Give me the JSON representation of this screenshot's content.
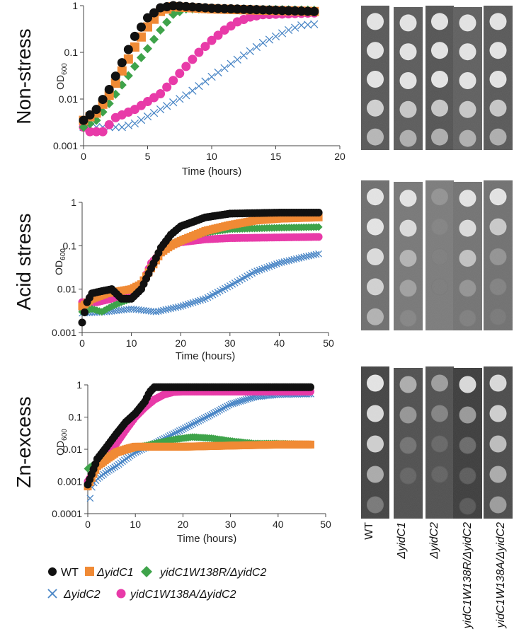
{
  "colors": {
    "WT": "#111111",
    "dyidC1": "#f08a35",
    "W138R": "#3ea34a",
    "dyidC2": "#4a86c6",
    "W138A": "#e83aa8"
  },
  "strains": [
    "WT",
    "ΔyidC1",
    "ΔyidC2",
    "yidC1W138R/ΔyidC2",
    "yidC1W138A/ΔyidC2"
  ],
  "legend": {
    "row1": [
      {
        "key": "WT",
        "label": "WT",
        "italic": false,
        "marker": "circle"
      },
      {
        "key": "dyidC1",
        "label": "ΔyidC1",
        "italic": true,
        "marker": "square"
      },
      {
        "key": "W138R",
        "label": "yidC1W138R/ΔyidC2",
        "italic": true,
        "marker": "diamond"
      }
    ],
    "row2": [
      {
        "key": "dyidC2",
        "label": "ΔyidC2",
        "italic": true,
        "marker": "cross"
      },
      {
        "key": "W138A",
        "label": "yidC1W138A/ΔyidC2",
        "italic": true,
        "marker": "circle"
      }
    ]
  },
  "chart_data": [
    {
      "type": "scatter",
      "title": "Non-stress",
      "xlabel": "Time (hours)",
      "ylabel": "OD600",
      "ylabel_main": "OD",
      "ylabel_sub": "600",
      "yscale": "log",
      "xlim": [
        0,
        20
      ],
      "ylim": [
        0.001,
        1
      ],
      "xticks": [
        0,
        5,
        10,
        15,
        20
      ],
      "yticks": [
        1,
        0.1,
        0.01,
        0.001
      ],
      "ytick_labels": [
        "1",
        "0.1",
        "0.01",
        "0.001"
      ],
      "series": [
        {
          "name": "WT",
          "key": "WT",
          "xmax": 18,
          "step": 0.5,
          "points": [
            [
              0,
              0.0035
            ],
            [
              1,
              0.006
            ],
            [
              2,
              0.016
            ],
            [
              3,
              0.06
            ],
            [
              4,
              0.22
            ],
            [
              5,
              0.55
            ],
            [
              6,
              0.9
            ],
            [
              7,
              1.0
            ],
            [
              10,
              0.88
            ],
            [
              18,
              0.75
            ]
          ]
        },
        {
          "name": "ΔyidC1",
          "key": "dyidC1",
          "xmax": 18,
          "step": 0.5,
          "points": [
            [
              0,
              0.0035
            ],
            [
              1,
              0.005
            ],
            [
              2,
              0.012
            ],
            [
              3,
              0.04
            ],
            [
              4,
              0.13
            ],
            [
              5,
              0.35
            ],
            [
              6,
              0.75
            ],
            [
              7,
              0.95
            ],
            [
              10,
              0.85
            ],
            [
              18,
              0.75
            ]
          ]
        },
        {
          "name": "yidC1W138R/ΔyidC2",
          "key": "W138R",
          "xmax": 18,
          "step": 0.5,
          "points": [
            [
              0,
              0.0025
            ],
            [
              1,
              0.0035
            ],
            [
              2,
              0.008
            ],
            [
              3,
              0.02
            ],
            [
              4,
              0.05
            ],
            [
              5,
              0.12
            ],
            [
              6,
              0.3
            ],
            [
              7,
              0.65
            ],
            [
              8,
              0.85
            ],
            [
              12,
              0.85
            ],
            [
              18,
              0.8
            ]
          ]
        },
        {
          "name": "ΔyidC2",
          "key": "dyidC2",
          "xmax": 18,
          "step": 0.5,
          "points": [
            [
              0,
              0.0025
            ],
            [
              3,
              0.0025
            ],
            [
              4,
              0.003
            ],
            [
              6,
              0.006
            ],
            [
              8,
              0.012
            ],
            [
              10,
              0.03
            ],
            [
              12,
              0.07
            ],
            [
              14,
              0.16
            ],
            [
              16,
              0.3
            ],
            [
              17,
              0.38
            ],
            [
              18,
              0.4
            ]
          ]
        },
        {
          "name": "yidC1W138A/ΔyidC2",
          "key": "W138A",
          "xmax": 18,
          "step": 0.5,
          "points": [
            [
              0,
              0.0025
            ],
            [
              0.5,
              0.002
            ],
            [
              1.5,
              0.002
            ],
            [
              2.5,
              0.004
            ],
            [
              4,
              0.006
            ],
            [
              6,
              0.013
            ],
            [
              7,
              0.025
            ],
            [
              8,
              0.05
            ],
            [
              9,
              0.1
            ],
            [
              10,
              0.18
            ],
            [
              11,
              0.3
            ],
            [
              12,
              0.45
            ],
            [
              13,
              0.57
            ],
            [
              14,
              0.64
            ],
            [
              18,
              0.7
            ]
          ]
        }
      ]
    },
    {
      "type": "scatter",
      "title": "Acid stress",
      "xlabel": "Time (hours)",
      "ylabel": "OD600",
      "ylabel_main": "OD",
      "ylabel_sub": "600",
      "yscale": "log",
      "xlim": [
        0,
        50
      ],
      "ylim": [
        0.001,
        1
      ],
      "xticks": [
        0,
        10,
        20,
        30,
        40,
        50
      ],
      "yticks": [
        1,
        0.1,
        0.01,
        0.001
      ],
      "ytick_labels": [
        "1",
        "0.1",
        "0.01",
        "0.001"
      ],
      "series": [
        {
          "name": "WT",
          "key": "WT",
          "xmax": 48,
          "step": 0.5,
          "points": [
            [
              0,
              0.0017
            ],
            [
              1,
              0.005
            ],
            [
              2,
              0.008
            ],
            [
              4,
              0.009
            ],
            [
              6,
              0.01
            ],
            [
              8,
              0.006
            ],
            [
              10,
              0.006
            ],
            [
              12,
              0.01
            ],
            [
              14,
              0.03
            ],
            [
              16,
              0.09
            ],
            [
              18,
              0.18
            ],
            [
              20,
              0.28
            ],
            [
              25,
              0.45
            ],
            [
              30,
              0.55
            ],
            [
              40,
              0.58
            ],
            [
              48,
              0.58
            ]
          ]
        },
        {
          "name": "ΔyidC1",
          "key": "dyidC1",
          "xmax": 48,
          "step": 0.5,
          "points": [
            [
              0,
              0.004
            ],
            [
              2,
              0.006
            ],
            [
              5,
              0.008
            ],
            [
              10,
              0.01
            ],
            [
              12,
              0.013
            ],
            [
              14,
              0.03
            ],
            [
              16,
              0.07
            ],
            [
              18,
              0.1
            ],
            [
              20,
              0.13
            ],
            [
              25,
              0.22
            ],
            [
              30,
              0.3
            ],
            [
              35,
              0.38
            ],
            [
              40,
              0.42
            ],
            [
              48,
              0.45
            ]
          ]
        },
        {
          "name": "yidC1W138R/ΔyidC2",
          "key": "W138R",
          "xmax": 48,
          "step": 0.5,
          "points": [
            [
              0,
              0.003
            ],
            [
              2,
              0.0035
            ],
            [
              4,
              0.003
            ],
            [
              6,
              0.004
            ],
            [
              8,
              0.005
            ],
            [
              10,
              0.006
            ],
            [
              12,
              0.01
            ],
            [
              14,
              0.035
            ],
            [
              16,
              0.07
            ],
            [
              18,
              0.11
            ],
            [
              20,
              0.14
            ],
            [
              25,
              0.2
            ],
            [
              30,
              0.24
            ],
            [
              40,
              0.26
            ],
            [
              48,
              0.27
            ]
          ]
        },
        {
          "name": "ΔyidC2",
          "key": "dyidC2",
          "xmax": 48,
          "step": 0.5,
          "points": [
            [
              0,
              0.0028
            ],
            [
              5,
              0.003
            ],
            [
              10,
              0.0035
            ],
            [
              15,
              0.003
            ],
            [
              20,
              0.004
            ],
            [
              25,
              0.006
            ],
            [
              30,
              0.012
            ],
            [
              35,
              0.025
            ],
            [
              40,
              0.04
            ],
            [
              45,
              0.055
            ],
            [
              48,
              0.065
            ]
          ]
        },
        {
          "name": "yidC1W138A/ΔyidC2",
          "key": "W138A",
          "xmax": 48,
          "step": 0.5,
          "points": [
            [
              0,
              0.005
            ],
            [
              3,
              0.005
            ],
            [
              6,
              0.006
            ],
            [
              10,
              0.008
            ],
            [
              12,
              0.012
            ],
            [
              14,
              0.04
            ],
            [
              16,
              0.07
            ],
            [
              18,
              0.1
            ],
            [
              20,
              0.12
            ],
            [
              25,
              0.14
            ],
            [
              30,
              0.15
            ],
            [
              48,
              0.16
            ]
          ]
        }
      ]
    },
    {
      "type": "scatter",
      "title": "Zn-excess",
      "xlabel": "Time (hours)",
      "ylabel": "OD600",
      "ylabel_main": "OD",
      "ylabel_sub": "600",
      "yscale": "log",
      "xlim": [
        0,
        50
      ],
      "ylim": [
        0.0001,
        1
      ],
      "xticks": [
        0,
        10,
        20,
        30,
        40,
        50
      ],
      "yticks": [
        1,
        0.1,
        0.01,
        0.001,
        0.0001
      ],
      "ytick_labels": [
        "1",
        "0.1",
        "0.01",
        "0.001",
        "0.0001"
      ],
      "series": [
        {
          "name": "WT",
          "key": "WT",
          "xmax": 47,
          "step": 0.4,
          "points": [
            [
              0,
              0.0008
            ],
            [
              1,
              0.002
            ],
            [
              2,
              0.005
            ],
            [
              4,
              0.012
            ],
            [
              6,
              0.03
            ],
            [
              8,
              0.07
            ],
            [
              10,
              0.13
            ],
            [
              12,
              0.3
            ],
            [
              13,
              0.6
            ],
            [
              14,
              0.85
            ],
            [
              20,
              0.85
            ],
            [
              47,
              0.85
            ]
          ]
        },
        {
          "name": "ΔyidC1",
          "key": "dyidC1",
          "xmax": 47,
          "step": 0.4,
          "points": [
            [
              0,
              0.0007
            ],
            [
              1,
              0.0015
            ],
            [
              2,
              0.003
            ],
            [
              4,
              0.005
            ],
            [
              6,
              0.008
            ],
            [
              8,
              0.01
            ],
            [
              10,
              0.012
            ],
            [
              15,
              0.012
            ],
            [
              20,
              0.012
            ],
            [
              30,
              0.013
            ],
            [
              40,
              0.014
            ],
            [
              47,
              0.014
            ]
          ]
        },
        {
          "name": "yidC1W138R/ΔyidC2",
          "key": "W138R",
          "xmax": 47,
          "step": 0.4,
          "points": [
            [
              0,
              0.0025
            ],
            [
              2,
              0.004
            ],
            [
              4,
              0.006
            ],
            [
              6,
              0.008
            ],
            [
              8,
              0.01
            ],
            [
              10,
              0.011
            ],
            [
              14,
              0.015
            ],
            [
              18,
              0.02
            ],
            [
              22,
              0.024
            ],
            [
              26,
              0.022
            ],
            [
              30,
              0.018
            ],
            [
              35,
              0.015
            ],
            [
              40,
              0.015
            ],
            [
              47,
              0.014
            ]
          ]
        },
        {
          "name": "ΔyidC2",
          "key": "dyidC2",
          "xmax": 47,
          "step": 0.4,
          "points": [
            [
              0.5,
              0.0003
            ],
            [
              1,
              0.0008
            ],
            [
              2,
              0.0012
            ],
            [
              4,
              0.002
            ],
            [
              6,
              0.003
            ],
            [
              8,
              0.005
            ],
            [
              10,
              0.008
            ],
            [
              14,
              0.015
            ],
            [
              18,
              0.03
            ],
            [
              22,
              0.06
            ],
            [
              26,
              0.12
            ],
            [
              30,
              0.25
            ],
            [
              35,
              0.42
            ],
            [
              40,
              0.5
            ],
            [
              47,
              0.52
            ]
          ]
        },
        {
          "name": "yidC1W138A/ΔyidC2",
          "key": "W138A",
          "xmax": 47,
          "step": 0.4,
          "points": [
            [
              0,
              0.001
            ],
            [
              2,
              0.003
            ],
            [
              4,
              0.006
            ],
            [
              6,
              0.015
            ],
            [
              8,
              0.04
            ],
            [
              10,
              0.1
            ],
            [
              12,
              0.2
            ],
            [
              14,
              0.35
            ],
            [
              16,
              0.5
            ],
            [
              18,
              0.6
            ],
            [
              20,
              0.62
            ],
            [
              47,
              0.62
            ]
          ]
        }
      ]
    }
  ]
}
